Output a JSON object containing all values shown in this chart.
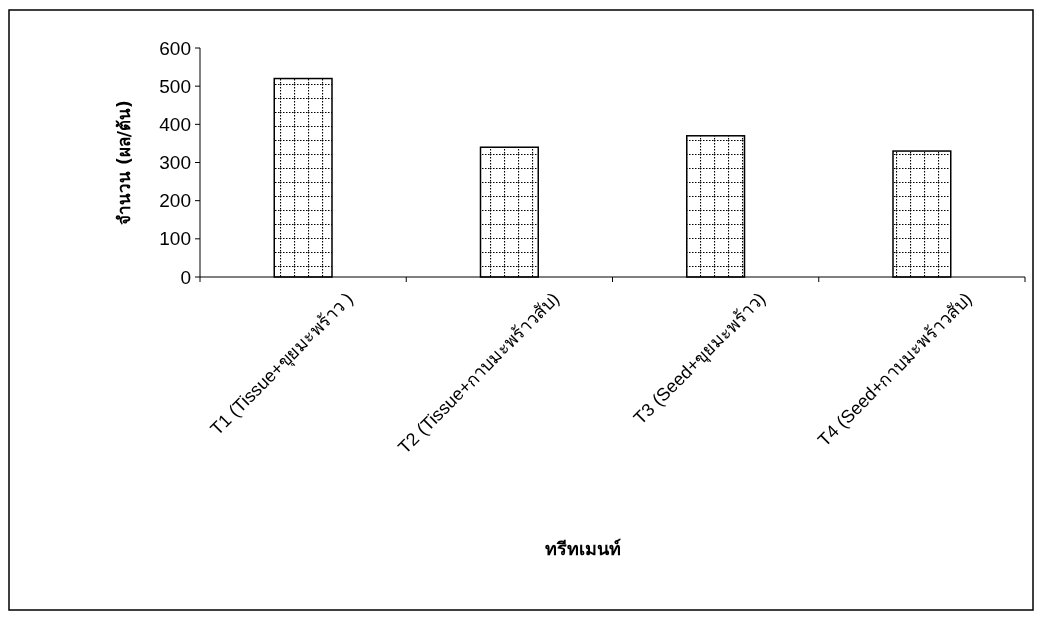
{
  "chart_data": {
    "type": "bar",
    "xlabel": "ทรีทเมนท์",
    "ylabel": "จำนวน (ผล/ต้น)",
    "categories": [
      "T1 (Tissue+ขุยมะพร้าว )",
      "T2 (Tissue+กาบมะพร้าวสับ)",
      "T3  (Seed+ขุยมะพร้าว)",
      "T4  (Seed+กาบมะพร้าวสับ)"
    ],
    "values": [
      520,
      340,
      370,
      330
    ],
    "color": "#000000",
    "ylim": [
      0,
      600
    ],
    "yticks": [
      0,
      100,
      200,
      300,
      400,
      500,
      600
    ],
    "grid": false
  }
}
